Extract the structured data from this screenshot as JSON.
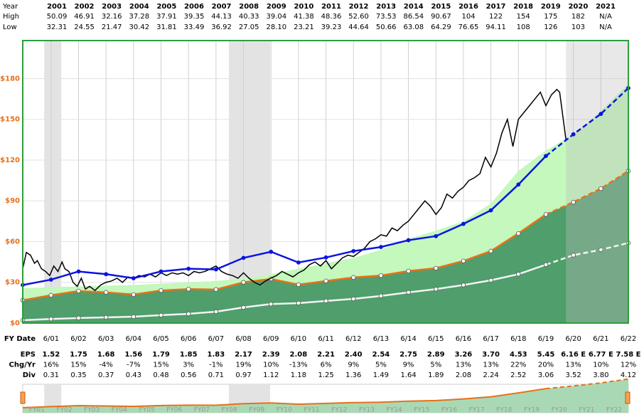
{
  "chart_data": {
    "type": "line",
    "xlim": [
      2000.47,
      2022.5
    ],
    "ylim": [
      0,
      208
    ],
    "yticks": [
      {
        "value": 0,
        "label": "$0"
      },
      {
        "value": 30,
        "label": "$30"
      },
      {
        "value": 60,
        "label": "$60"
      },
      {
        "value": 90,
        "label": "$90"
      },
      {
        "value": 120,
        "label": "$120"
      },
      {
        "value": 150,
        "label": "$150"
      },
      {
        "value": 180,
        "label": "$180"
      }
    ],
    "xticks": [
      {
        "value": 2001.5,
        "label": "6/01"
      },
      {
        "value": 2002.5,
        "label": "6/02"
      },
      {
        "value": 2003.5,
        "label": "6/03"
      },
      {
        "value": 2004.5,
        "label": "6/04"
      },
      {
        "value": 2005.5,
        "label": "6/05"
      },
      {
        "value": 2006.5,
        "label": "6/06"
      },
      {
        "value": 2007.5,
        "label": "6/07"
      },
      {
        "value": 2008.5,
        "label": "6/08"
      },
      {
        "value": 2009.5,
        "label": "6/09"
      },
      {
        "value": 2010.5,
        "label": "6/10"
      },
      {
        "value": 2011.5,
        "label": "6/11"
      },
      {
        "value": 2012.5,
        "label": "6/12"
      },
      {
        "value": 2013.5,
        "label": "6/13"
      },
      {
        "value": 2014.5,
        "label": "6/14"
      },
      {
        "value": 2015.5,
        "label": "6/15"
      },
      {
        "value": 2016.5,
        "label": "6/16"
      },
      {
        "value": 2017.5,
        "label": "6/17"
      },
      {
        "value": 2018.5,
        "label": "6/18"
      },
      {
        "value": 2019.5,
        "label": "6/19"
      },
      {
        "value": 2020.5,
        "label": "6/20"
      },
      {
        "value": 2021.5,
        "label": "6/21"
      },
      {
        "value": 2022.5,
        "label": "6/22"
      }
    ],
    "grid": true,
    "shaded_periods": [
      [
        2001.25,
        2001.87
      ],
      [
        2007.97,
        2009.47
      ]
    ],
    "forecast_region": [
      2020.23,
      2022.5
    ],
    "estimate_after": 2019.5,
    "x": [
      2000.47,
      2001.5,
      2002.5,
      2003.5,
      2004.5,
      2005.5,
      2006.5,
      2007.5,
      2008.5,
      2009.5,
      2010.5,
      2011.5,
      2012.5,
      2013.5,
      2014.5,
      2015.5,
      2016.5,
      2017.5,
      2018.5,
      2019.5,
      2020.5,
      2021.5,
      2022.5
    ],
    "series": [
      {
        "color": "#2ed82a",
        "fill": "#c4f8bc",
        "values": [
          25.7,
          26.5,
          27,
          27.5,
          28,
          29,
          30,
          31,
          33,
          36,
          40,
          44,
          48,
          54,
          62,
          68,
          75,
          88,
          112,
          127,
          139,
          156,
          176
        ]
      },
      {
        "color": "#e8701a",
        "fill": "#4f9e6b",
        "markers": true,
        "values": [
          16.8,
          20.5,
          23.6,
          22.6,
          21,
          24,
          25,
          24.7,
          30,
          32.5,
          28.3,
          31,
          33.6,
          35,
          38.3,
          40.4,
          45.7,
          53,
          66,
          80,
          89,
          99,
          112
        ]
      },
      {
        "color": "#000000",
        "x": [
          2000.47,
          2000.6,
          2000.75,
          2000.9,
          2001.0,
          2001.15,
          2001.3,
          2001.45,
          2001.6,
          2001.75,
          2001.9,
          2002.0,
          2002.15,
          2002.3,
          2002.45,
          2002.6,
          2002.75,
          2002.9,
          2003.1,
          2003.3,
          2003.5,
          2003.7,
          2003.9,
          2004.1,
          2004.3,
          2004.5,
          2004.7,
          2004.9,
          2005.1,
          2005.3,
          2005.5,
          2005.7,
          2005.9,
          2006.1,
          2006.3,
          2006.5,
          2006.7,
          2006.9,
          2007.1,
          2007.3,
          2007.5,
          2007.7,
          2007.9,
          2008.1,
          2008.3,
          2008.5,
          2008.7,
          2008.9,
          2009.1,
          2009.3,
          2009.5,
          2009.7,
          2009.9,
          2010.1,
          2010.3,
          2010.5,
          2010.7,
          2010.9,
          2011.1,
          2011.3,
          2011.5,
          2011.7,
          2011.9,
          2012.1,
          2012.3,
          2012.5,
          2012.7,
          2012.9,
          2013.1,
          2013.3,
          2013.5,
          2013.7,
          2013.9,
          2014.1,
          2014.3,
          2014.5,
          2014.7,
          2014.9,
          2015.1,
          2015.3,
          2015.5,
          2015.7,
          2015.9,
          2016.1,
          2016.3,
          2016.5,
          2016.7,
          2016.9,
          2017.1,
          2017.3,
          2017.5,
          2017.7,
          2017.9,
          2018.1,
          2018.3,
          2018.5,
          2018.7,
          2018.9,
          2019.1,
          2019.3,
          2019.5,
          2019.7,
          2019.9,
          2020.0,
          2020.23
        ],
        "values": [
          40,
          52,
          50,
          44,
          46,
          40,
          38,
          35,
          42,
          38,
          45,
          40,
          38,
          30,
          27,
          33,
          25,
          27,
          24,
          28,
          30,
          31,
          33,
          30,
          34,
          33,
          35,
          34,
          36,
          34,
          37,
          35,
          37,
          36,
          37,
          35,
          38,
          37,
          38,
          40,
          42,
          38,
          36,
          35,
          33,
          37,
          33,
          30,
          28,
          31,
          33,
          35,
          38,
          36,
          34,
          37,
          39,
          43,
          45,
          42,
          46,
          40,
          44,
          48,
          50,
          49,
          52,
          55,
          60,
          62,
          65,
          64,
          70,
          68,
          72,
          75,
          80,
          85,
          90,
          86,
          80,
          85,
          95,
          92,
          97,
          100,
          105,
          107,
          110,
          122,
          115,
          125,
          140,
          150,
          130,
          150,
          155,
          160,
          165,
          170,
          160,
          168,
          172,
          170,
          135
        ]
      },
      {
        "color": "#0a14e0",
        "markers": true,
        "values": [
          28,
          32,
          38,
          36,
          33,
          38,
          40,
          39.5,
          48,
          52.5,
          44.6,
          48.3,
          53,
          56,
          61,
          64,
          73,
          83,
          102,
          123,
          139,
          154,
          173
        ]
      },
      {
        "color": "#f4f4f4",
        "markers": true,
        "values": [
          2.1,
          3,
          3.7,
          4.2,
          4.7,
          5.8,
          6.8,
          8.4,
          11.5,
          14,
          14.7,
          16.3,
          17.8,
          20,
          22.6,
          25,
          28,
          31.5,
          36,
          43,
          50,
          54,
          59
        ]
      }
    ],
    "year_table": {
      "header": "Year",
      "columns": [
        2001,
        2002,
        2003,
        2004,
        2005,
        2006,
        2007,
        2008,
        2009,
        2010,
        2011,
        2012,
        2013,
        2014,
        2015,
        2016,
        2017,
        2018,
        2019,
        2020,
        2021
      ],
      "rows": [
        {
          "label": "High",
          "values": [
            "50.09",
            "46.91",
            "32.16",
            "37.28",
            "37.91",
            "39.35",
            "44.13",
            "40.33",
            "39.04",
            "41.38",
            "48.36",
            "52.60",
            "73.53",
            "86.54",
            "90.67",
            "104",
            "122",
            "154",
            "175",
            "182",
            "N/A"
          ]
        },
        {
          "label": "Low",
          "values": [
            "32.31",
            "24.55",
            "21.47",
            "30.42",
            "31.81",
            "33.49",
            "36.92",
            "27.05",
            "28.10",
            "23.21",
            "39.23",
            "44.64",
            "50.66",
            "63.08",
            "64.29",
            "76.65",
            "94.11",
            "108",
            "126",
            "103",
            "N/A"
          ]
        }
      ]
    },
    "x_label": "FY Date",
    "fy_table": {
      "rows": [
        {
          "label": "EPS",
          "values": [
            "1.52",
            "1.75",
            "1.68",
            "1.56",
            "1.79",
            "1.85",
            "1.83",
            "2.17",
            "2.39",
            "2.08",
            "2.21",
            "2.40",
            "2.54",
            "2.75",
            "2.89",
            "3.26",
            "3.70",
            "4.53",
            "5.45",
            "6.16 E",
            "6.77 E",
            "7.58 E"
          ]
        },
        {
          "label": "Chg/Yr",
          "values": [
            "16%",
            "15%",
            "-4%",
            "-7%",
            "15%",
            "3%",
            "-1%",
            "19%",
            "10%",
            "-13%",
            "6%",
            "9%",
            "5%",
            "9%",
            "5%",
            "13%",
            "13%",
            "22%",
            "20%",
            "13%",
            "10%",
            "12%"
          ]
        },
        {
          "label": "Div",
          "values": [
            "0.31",
            "0.35",
            "0.37",
            "0.43",
            "0.48",
            "0.56",
            "0.71",
            "0.97",
            "1.12",
            "1.18",
            "1.25",
            "1.36",
            "1.49",
            "1.64",
            "1.89",
            "2.08",
            "2.24",
            "2.52",
            "3.06",
            "3.52",
            "3.80",
            "4.12"
          ]
        }
      ]
    },
    "navigator": {
      "labels": [
        "FY01",
        "FY02",
        "FY03",
        "FY04",
        "FY05",
        "FY06",
        "FY07",
        "FY08",
        "FY09",
        "FY10",
        "FY11",
        "FY12",
        "FY13",
        "FY14",
        "FY15",
        "FY16",
        "FY17",
        "FY18",
        "FY19",
        "FY20",
        "FY21",
        "FY22"
      ]
    }
  }
}
